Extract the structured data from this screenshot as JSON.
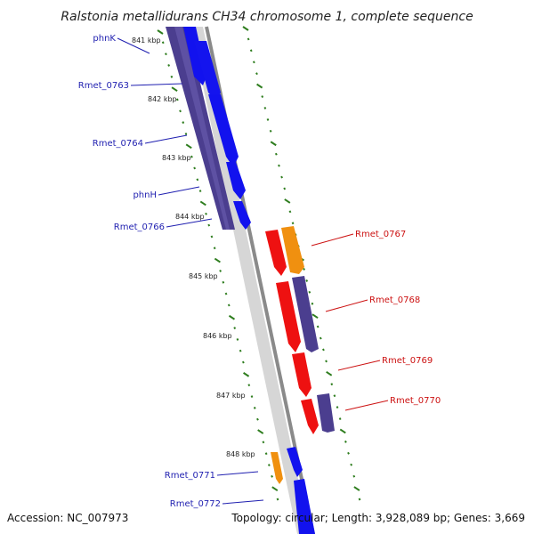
{
  "title": "Ralstonia metallidurans CH34 chromosome 1, complete sequence",
  "accession": "Accession: NC_007973",
  "topology": "Topology: circular; Length: 3,928,089 bp; Genes: 3,669",
  "colors": {
    "backbone": "#8a8a8a",
    "tick": "#2e7d1e",
    "label_left": "#1f1fb0",
    "label_right": "#cc1111",
    "gene_blue": "#1212ee",
    "gene_navy": "#4b3e8f",
    "gene_red": "#ee1111",
    "gene_orange": "#f09010",
    "gene_gray": "#c8c8c8"
  },
  "kbp_labels": [
    "841 kbp",
    "842 kbp",
    "843 kbp",
    "844 kbp",
    "845 kbp",
    "846 kbp",
    "847 kbp",
    "848 kbp"
  ],
  "gene_labels_left": [
    "phnK",
    "Rmet_0763",
    "Rmet_0764",
    "phnH",
    "Rmet_0766",
    "Rmet_0771",
    "Rmet_0772"
  ],
  "gene_labels_right": [
    "Rmet_0767",
    "Rmet_0768",
    "Rmet_0769",
    "Rmet_0770"
  ]
}
